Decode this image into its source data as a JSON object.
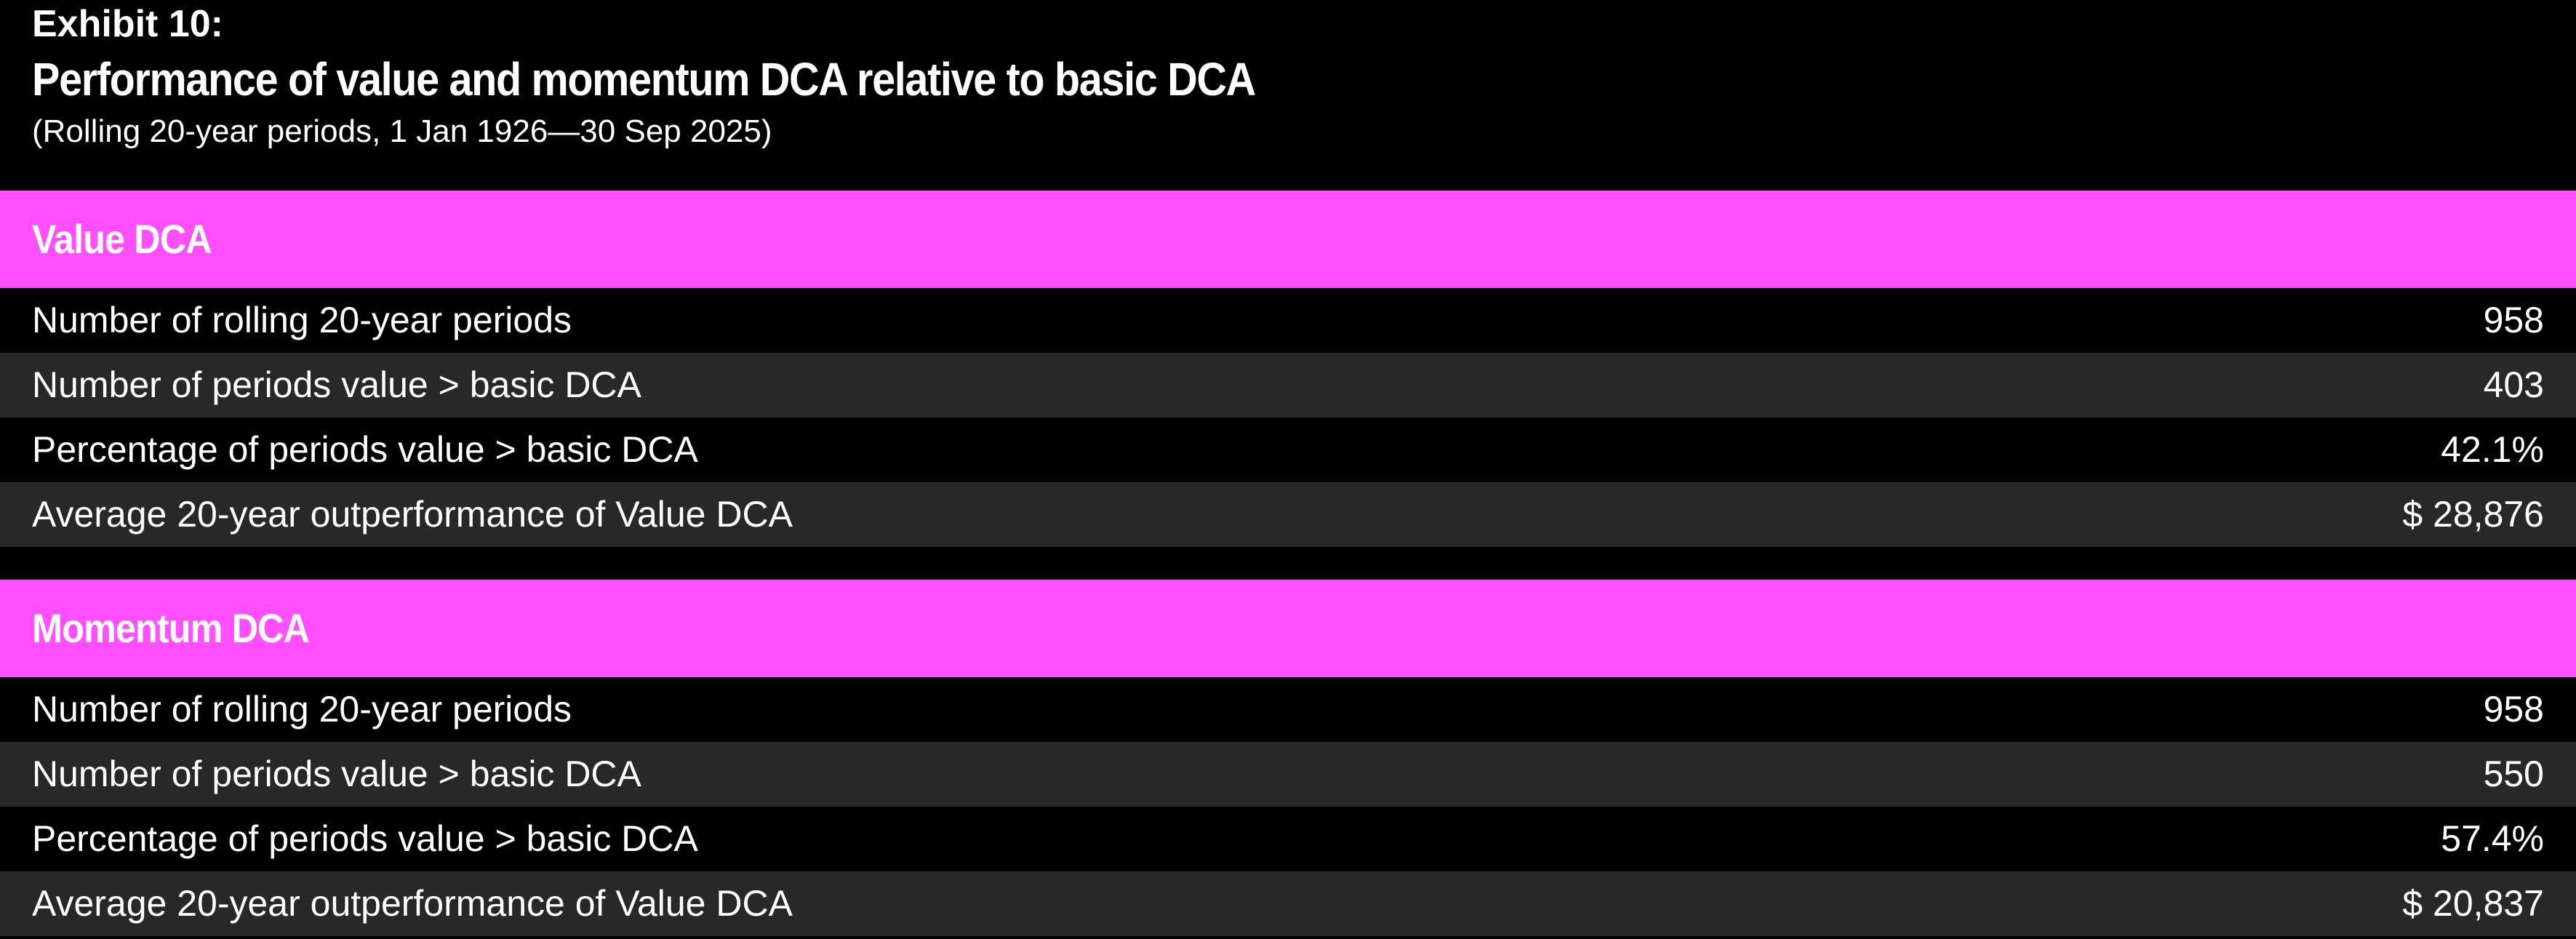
{
  "header": {
    "exhibit": "Exhibit 10:",
    "title": "Performance of value and momentum DCA relative to basic DCA",
    "subtitle": "(Rolling 20-year periods, 1 Jan 1926—30 Sep 2025)"
  },
  "colors": {
    "background": "#000000",
    "section_header": "#ff4fff",
    "row_alt": "#282828",
    "text": "#ffffff"
  },
  "chart_data": {
    "type": "table",
    "title": "Performance of value and momentum DCA relative to basic DCA",
    "subtitle": "(Rolling 20-year periods, 1 Jan 1926—30 Sep 2025)",
    "sections": [
      {
        "name": "Value DCA",
        "rows": [
          {
            "label": "Number of rolling 20-year periods",
            "value": "958"
          },
          {
            "label": "Number of periods value > basic DCA",
            "value": "403"
          },
          {
            "label": "Percentage of periods value > basic DCA",
            "value": "42.1%"
          },
          {
            "label": "Average 20-year outperformance of Value DCA",
            "value": "$ 28,876"
          }
        ]
      },
      {
        "name": "Momentum DCA",
        "rows": [
          {
            "label": "Number of rolling 20-year periods",
            "value": "958"
          },
          {
            "label": "Number of periods value > basic DCA",
            "value": "550"
          },
          {
            "label": "Percentage of periods value > basic DCA",
            "value": "57.4%"
          },
          {
            "label": "Average 20-year outperformance of Value DCA",
            "value": "$ 20,837"
          }
        ]
      }
    ]
  }
}
